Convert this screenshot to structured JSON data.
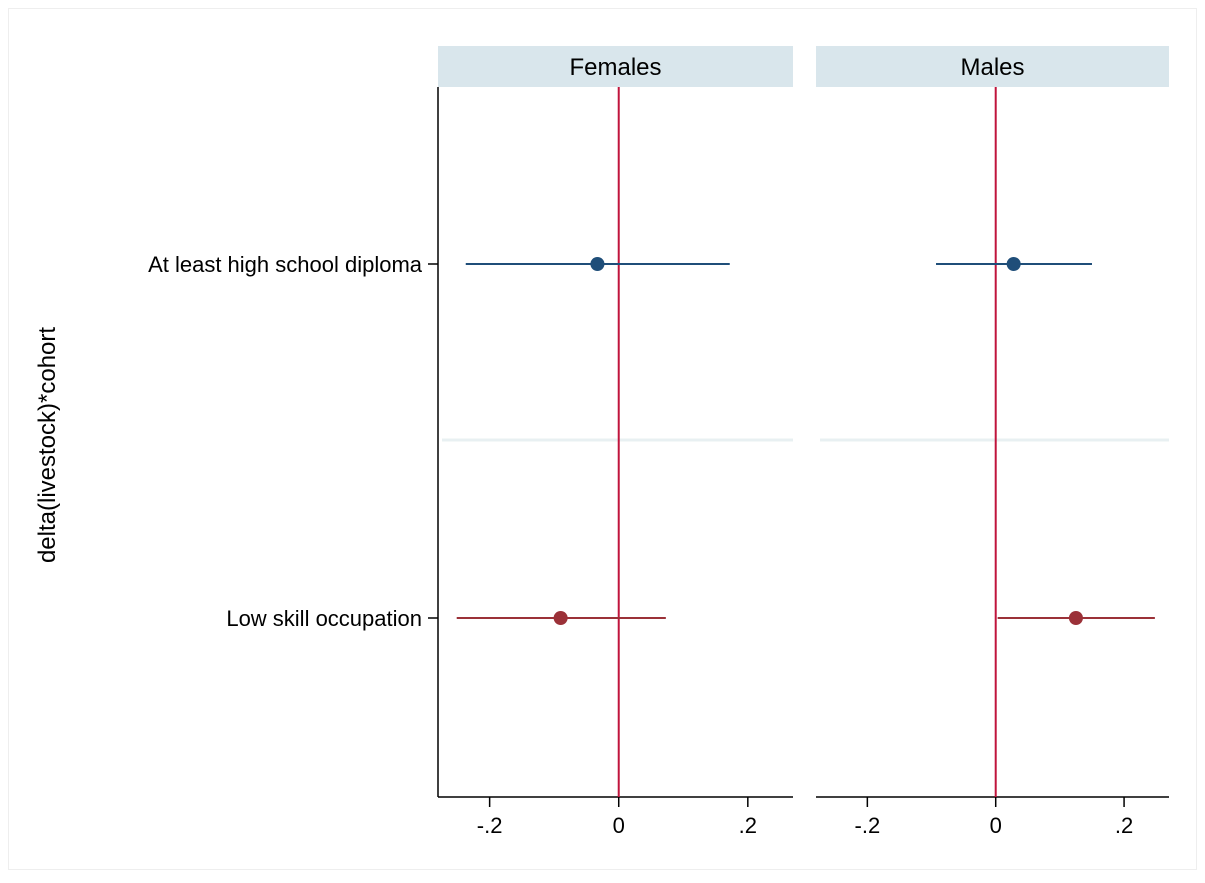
{
  "chart_data": {
    "type": "scatter",
    "ylabel": "delta(livestock)*cohort",
    "categories": [
      "At least high school diploma",
      "Low skill occupation"
    ],
    "xticks": [
      -0.2,
      0,
      0.2
    ],
    "xtick_labels": [
      "-.2",
      "0",
      ".2"
    ],
    "reference_line_x": 0,
    "panels": [
      {
        "title": "Females",
        "xlim": [
          -0.28,
          0.27
        ],
        "points": [
          {
            "category": "At least high school diploma",
            "estimate": -0.033,
            "ci": [
              -0.237,
              0.172
            ],
            "color": "#1f4e79"
          },
          {
            "category": "Low skill occupation",
            "estimate": -0.09,
            "ci": [
              -0.251,
              0.073
            ],
            "color": "#9b3138"
          }
        ]
      },
      {
        "title": "Males",
        "xlim": [
          -0.28,
          0.27
        ],
        "points": [
          {
            "category": "At least high school diploma",
            "estimate": 0.028,
            "ci": [
              -0.093,
              0.15
            ],
            "color": "#1f4e79"
          },
          {
            "category": "Low skill occupation",
            "estimate": 0.125,
            "ci": [
              0.003,
              0.248
            ],
            "color": "#9b3138"
          }
        ]
      }
    ],
    "colors": {
      "reference_line": "#c0143c",
      "panel_header_bg": "#d9e6ec",
      "divider": "#e8f0f2",
      "axis": "#000000"
    }
  }
}
